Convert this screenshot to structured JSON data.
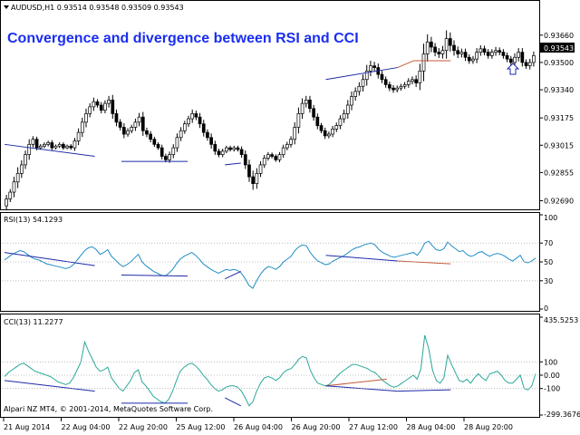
{
  "chart_data": [
    {
      "type": "candlestick",
      "header": "AUDUSD,H1  0.93514 0.93548 0.93509 0.93543",
      "title": "Convergence and divergence between RSI and CCI",
      "current_price": "0.93543",
      "ylim": [
        0.9265,
        0.9385
      ],
      "y_ticks": [
        "0.93660",
        "0.93500",
        "0.93340",
        "0.93175",
        "0.93015",
        "0.92855",
        "0.92690"
      ],
      "close": [
        0.927,
        0.9274,
        0.928,
        0.9285,
        0.929,
        0.9296,
        0.9302,
        0.9305,
        0.93,
        0.9301,
        0.9302,
        0.9303,
        0.93,
        0.9301,
        0.9302,
        0.93,
        0.9301,
        0.93,
        0.9304,
        0.9309,
        0.9315,
        0.932,
        0.9324,
        0.9327,
        0.9325,
        0.9322,
        0.9326,
        0.9328,
        0.932,
        0.9315,
        0.9312,
        0.9308,
        0.931,
        0.9312,
        0.9315,
        0.9318,
        0.931,
        0.9308,
        0.9305,
        0.9302,
        0.93,
        0.9295,
        0.9293,
        0.9296,
        0.93,
        0.9306,
        0.931,
        0.9314,
        0.9317,
        0.932,
        0.9318,
        0.9314,
        0.9309,
        0.9306,
        0.9302,
        0.9298,
        0.9296,
        0.9298,
        0.93,
        0.9299,
        0.93,
        0.9299,
        0.9296,
        0.929,
        0.9283,
        0.9279,
        0.9285,
        0.929,
        0.9294,
        0.9296,
        0.9295,
        0.9293,
        0.9296,
        0.93,
        0.9302,
        0.9305,
        0.9312,
        0.932,
        0.9326,
        0.9328,
        0.9323,
        0.9318,
        0.9313,
        0.931,
        0.9307,
        0.9308,
        0.9311,
        0.9313,
        0.9317,
        0.932,
        0.9325,
        0.933,
        0.9333,
        0.9336,
        0.934,
        0.9345,
        0.9348,
        0.9347,
        0.9343,
        0.934,
        0.9337,
        0.9335,
        0.9334,
        0.9335,
        0.9336,
        0.9337,
        0.9339,
        0.934,
        0.9338,
        0.9345,
        0.9355,
        0.9362,
        0.9359,
        0.9356,
        0.9355,
        0.9357,
        0.9364,
        0.936,
        0.9357,
        0.9355,
        0.9356,
        0.9353,
        0.9351,
        0.9352,
        0.9356,
        0.9358,
        0.9356,
        0.9354,
        0.9356,
        0.9357,
        0.9356,
        0.9354,
        0.9352,
        0.935,
        0.9353,
        0.9356,
        0.935,
        0.9348,
        0.935,
        0.9354
      ],
      "ranges": [
        0.0008,
        0.0006,
        0.001,
        0.0012,
        0.0009,
        0.0008,
        0.001,
        0.0006,
        0.0005,
        0.0004,
        0.0004,
        0.0004,
        0.0005,
        0.0003,
        0.0004,
        0.0004,
        0.0003,
        0.0004,
        0.0006,
        0.0008,
        0.0009,
        0.001,
        0.0007,
        0.0008,
        0.0005,
        0.0006,
        0.0006,
        0.0008,
        0.001,
        0.0008,
        0.0006,
        0.0008,
        0.0005,
        0.0005,
        0.0007,
        0.0008,
        0.001,
        0.0006,
        0.0006,
        0.0005,
        0.0004,
        0.0006,
        0.0005,
        0.0006,
        0.0007,
        0.0008,
        0.0007,
        0.0006,
        0.0006,
        0.0008,
        0.0006,
        0.0008,
        0.0008,
        0.0006,
        0.0008,
        0.0007,
        0.0005,
        0.0005,
        0.0004,
        0.0004,
        0.0004,
        0.0004,
        0.0006,
        0.0008,
        0.001,
        0.0012,
        0.001,
        0.0007,
        0.0006,
        0.0005,
        0.0004,
        0.0004,
        0.0005,
        0.0006,
        0.0005,
        0.0006,
        0.001,
        0.0012,
        0.001,
        0.0008,
        0.0008,
        0.0007,
        0.0007,
        0.0005,
        0.0006,
        0.0005,
        0.0006,
        0.0006,
        0.0007,
        0.0008,
        0.001,
        0.001,
        0.0008,
        0.0008,
        0.001,
        0.0012,
        0.001,
        0.0008,
        0.0008,
        0.0007,
        0.0006,
        0.0006,
        0.0006,
        0.0005,
        0.0005,
        0.0005,
        0.0006,
        0.0006,
        0.0008,
        0.0014,
        0.002,
        0.0015,
        0.001,
        0.0008,
        0.0008,
        0.0009,
        0.0016,
        0.0012,
        0.001,
        0.0008,
        0.0007,
        0.0007,
        0.0006,
        0.0006,
        0.0008,
        0.0007,
        0.0006,
        0.0006,
        0.0006,
        0.0007,
        0.0006,
        0.0006,
        0.0006,
        0.0006,
        0.0008,
        0.0008,
        0.0008,
        0.0006,
        0.0007,
        0.0008
      ],
      "divergence_lines": [
        {
          "from": [
            0.0,
            0.9302
          ],
          "to": [
            0.17,
            0.9295
          ],
          "color": "#1f2aa8"
        },
        {
          "from": [
            0.22,
            0.9292
          ],
          "to": [
            0.345,
            0.9292
          ],
          "color": "#1f2aa8"
        },
        {
          "from": [
            0.415,
            0.929
          ],
          "to": [
            0.445,
            0.9291
          ],
          "color": "#1f2aa8"
        },
        {
          "from": [
            0.605,
            0.934
          ],
          "to": [
            0.74,
            0.9347
          ],
          "color": "#1f2aa8"
        },
        {
          "from": [
            0.74,
            0.9347
          ],
          "to": [
            0.77,
            0.9351
          ],
          "color": "#c55a3a"
        },
        {
          "from": [
            0.77,
            0.9351
          ],
          "to": [
            0.84,
            0.9351
          ],
          "color": "#c55a3a"
        }
      ],
      "arrow_marker": "up-arrow",
      "colors": {
        "bull": "#ffffff",
        "bear": "#000000",
        "line": "#1f2aa8",
        "div_red": "#c55a3a",
        "text_blue": "#1a2ef0"
      }
    },
    {
      "type": "line",
      "label": "RSI(13) 54.1293",
      "ylim": [
        0,
        100
      ],
      "y_ticks": [
        "100",
        "70",
        "50",
        "30",
        "0"
      ],
      "values": [
        52,
        55,
        58,
        60,
        62,
        61,
        58,
        55,
        53,
        52,
        50,
        48,
        47,
        46,
        45,
        44,
        43,
        44,
        47,
        52,
        57,
        62,
        65,
        66,
        63,
        58,
        60,
        63,
        56,
        52,
        48,
        45,
        47,
        50,
        54,
        58,
        50,
        46,
        43,
        40,
        38,
        36,
        35,
        38,
        42,
        48,
        53,
        56,
        58,
        60,
        57,
        53,
        48,
        45,
        42,
        40,
        38,
        40,
        42,
        41,
        42,
        41,
        38,
        32,
        25,
        22,
        30,
        37,
        42,
        45,
        44,
        42,
        45,
        50,
        53,
        56,
        62,
        66,
        68,
        67,
        60,
        55,
        51,
        49,
        47,
        48,
        51,
        53,
        55,
        57,
        60,
        63,
        65,
        66,
        68,
        69,
        70,
        68,
        63,
        60,
        58,
        56,
        55,
        56,
        57,
        58,
        59,
        60,
        57,
        62,
        70,
        72,
        67,
        63,
        62,
        64,
        71,
        67,
        64,
        61,
        62,
        58,
        56,
        57,
        60,
        61,
        58,
        56,
        58,
        59,
        58,
        56,
        53,
        51,
        54,
        57,
        50,
        49,
        51,
        54
      ],
      "divergence_lines": [
        {
          "from": [
            0.0,
            60
          ],
          "to": [
            0.17,
            46
          ],
          "color": "#1f2aa8"
        },
        {
          "from": [
            0.22,
            36
          ],
          "to": [
            0.345,
            35
          ],
          "color": "#1f2aa8"
        },
        {
          "from": [
            0.415,
            32
          ],
          "to": [
            0.445,
            40
          ],
          "color": "#1f2aa8"
        },
        {
          "from": [
            0.605,
            57
          ],
          "to": [
            0.74,
            51
          ],
          "color": "#1f2aa8"
        },
        {
          "from": [
            0.74,
            51
          ],
          "to": [
            0.84,
            48
          ],
          "color": "#c55a3a"
        }
      ],
      "color": "#1f8dc4"
    },
    {
      "type": "line",
      "label": "CCI(13) 11.2277",
      "ylim": [
        -299.3676,
        435.5253
      ],
      "y_ticks": [
        "435.5253",
        "100",
        "0.00",
        "-100",
        "-299.3676"
      ],
      "values": [
        -10,
        20,
        40,
        60,
        80,
        90,
        70,
        50,
        30,
        20,
        10,
        0,
        -10,
        -30,
        -50,
        -60,
        -70,
        -60,
        -20,
        40,
        100,
        250,
        180,
        120,
        60,
        30,
        40,
        60,
        -20,
        -60,
        -100,
        -120,
        -80,
        -40,
        20,
        40,
        -50,
        -80,
        -120,
        -160,
        -180,
        -200,
        -210,
        -180,
        -120,
        -40,
        30,
        60,
        80,
        90,
        70,
        40,
        0,
        -30,
        -70,
        -100,
        -120,
        -110,
        -90,
        -80,
        -80,
        -90,
        -120,
        -170,
        -230,
        -200,
        -120,
        -60,
        -20,
        -10,
        -20,
        -40,
        -20,
        20,
        40,
        50,
        80,
        120,
        140,
        130,
        40,
        -20,
        -60,
        -70,
        -80,
        -70,
        -40,
        -10,
        20,
        40,
        60,
        80,
        80,
        70,
        60,
        50,
        30,
        20,
        -10,
        -40,
        -60,
        -80,
        -90,
        -80,
        -60,
        -40,
        -20,
        0,
        -30,
        50,
        300,
        200,
        40,
        -40,
        -60,
        -20,
        150,
        80,
        20,
        -40,
        -50,
        -30,
        -60,
        -20,
        10,
        -20,
        -40,
        10,
        20,
        30,
        0,
        -40,
        -60,
        -60,
        -30,
        0,
        -100,
        -110,
        -80,
        11
      ],
      "divergence_lines": [
        {
          "from": [
            0.0,
            -40
          ],
          "to": [
            0.17,
            -120
          ],
          "color": "#1f2aa8"
        },
        {
          "from": [
            0.22,
            -210
          ],
          "to": [
            0.345,
            -210
          ],
          "color": "#1f2aa8"
        },
        {
          "from": [
            0.415,
            -170
          ],
          "to": [
            0.445,
            -230
          ],
          "color": "#1f2aa8"
        },
        {
          "from": [
            0.605,
            -80
          ],
          "to": [
            0.72,
            -30
          ],
          "color": "#c55a3a"
        },
        {
          "from": [
            0.605,
            -80
          ],
          "to": [
            0.74,
            -120
          ],
          "color": "#1f2aa8"
        },
        {
          "from": [
            0.74,
            -120
          ],
          "to": [
            0.84,
            -110
          ],
          "color": "#1f2aa8"
        }
      ],
      "color": "#2aa898"
    }
  ],
  "x_axis": {
    "labels": [
      "21 Aug 2014",
      "22 Aug 04:00",
      "22 Aug 20:00",
      "25 Aug 12:00",
      "26 Aug 04:00",
      "26 Aug 20:00",
      "27 Aug 12:00",
      "28 Aug 04:00",
      "28 Aug 20:00"
    ]
  },
  "copyright": "Alpari NZ MT4, © 2001-2014, MetaQuotes Software Corp."
}
